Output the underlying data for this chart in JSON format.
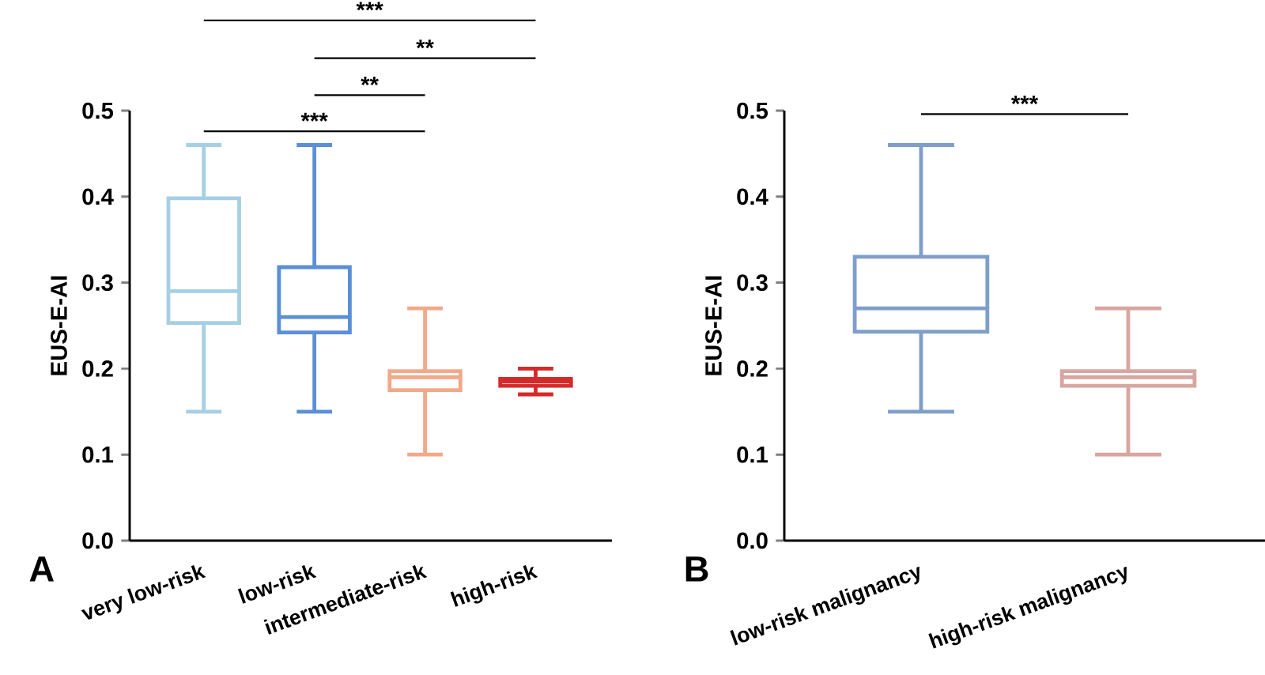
{
  "chart_data": [
    {
      "type": "box",
      "categories": [
        "very low-risk",
        "low-risk",
        "intermediate-risk",
        "high-risk"
      ],
      "boxes": [
        {
          "low": 0.15,
          "q1": 0.253,
          "median": 0.29,
          "q3": 0.398,
          "high": 0.46
        },
        {
          "low": 0.15,
          "q1": 0.242,
          "median": 0.26,
          "q3": 0.318,
          "high": 0.46
        },
        {
          "low": 0.1,
          "q1": 0.175,
          "median": 0.19,
          "q3": 0.197,
          "high": 0.27
        },
        {
          "low": 0.17,
          "q1": 0.18,
          "median": 0.185,
          "q3": 0.188,
          "high": 0.2
        }
      ],
      "colors": [
        "#a6cfe3",
        "#5b8fd6",
        "#f2a98a",
        "#d42a2a"
      ],
      "ylabel": "EUS-E-AI",
      "ylim": [
        0,
        0.5
      ],
      "yticks": [
        {
          "value": 0,
          "label": "0.0"
        },
        0.1,
        0.2,
        0.3,
        0.4,
        0.5
      ],
      "annotations": [
        "***",
        "**",
        "**",
        "***",
        "A"
      ]
    },
    {
      "type": "box",
      "categories": [
        "low-risk malignancy",
        "high-risk malignancy"
      ],
      "boxes": [
        {
          "low": 0.15,
          "q1": 0.243,
          "median": 0.27,
          "q3": 0.33,
          "high": 0.46
        },
        {
          "low": 0.1,
          "q1": 0.18,
          "median": 0.19,
          "q3": 0.197,
          "high": 0.27
        }
      ],
      "colors": [
        "#7f9fca",
        "#d8a6a0"
      ],
      "ylabel": "EUS-E-AI",
      "ylim": [
        0,
        0.5
      ],
      "yticks": [
        {
          "value": 0,
          "label": "0.0"
        },
        0.1,
        0.2,
        0.3,
        0.4,
        0.5
      ],
      "annotations": [
        "***",
        "B"
      ]
    }
  ]
}
